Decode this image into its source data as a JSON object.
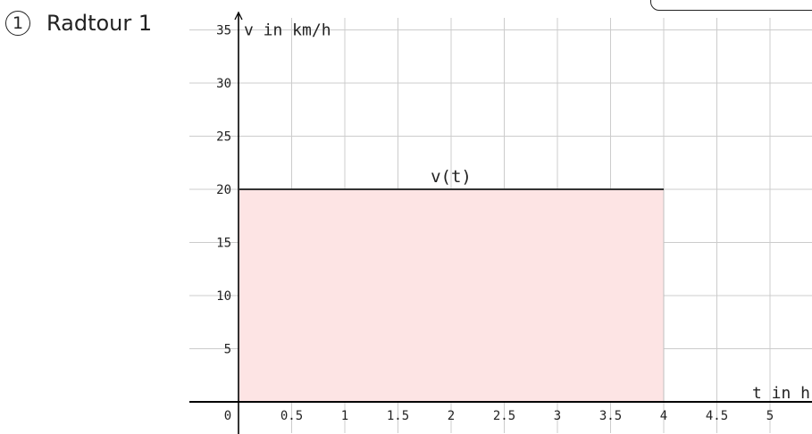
{
  "heading": {
    "number": "1",
    "label": "Radtour 1"
  },
  "chart_data": {
    "type": "area",
    "xlabel": "t in h",
    "ylabel": "v in km/h",
    "xlim": [
      0,
      5.3
    ],
    "ylim": [
      0,
      35
    ],
    "x_ticks": [
      0,
      0.5,
      1,
      1.5,
      2,
      2.5,
      3,
      3.5,
      4,
      4.5,
      5
    ],
    "x_tick_labels": [
      "0",
      "0.5",
      "1",
      "1.5",
      "2",
      "2.5",
      "3",
      "3.5",
      "4",
      "4.5",
      "5"
    ],
    "y_ticks": [
      5,
      10,
      15,
      20,
      25,
      30,
      35
    ],
    "y_tick_labels": [
      "5",
      "10",
      "15",
      "20",
      "25",
      "30",
      "35"
    ],
    "grid": true,
    "series": [
      {
        "name": "v(t)",
        "x": [
          0,
          4
        ],
        "values": [
          20,
          20
        ]
      }
    ],
    "fill": {
      "x_from": 0,
      "x_to": 4,
      "y_from": 0,
      "y_to": 20
    },
    "colors": {
      "fill": "#fde4e4",
      "line": "#333333",
      "grid": "#cccccc",
      "axis": "#000000",
      "text": "#222222"
    }
  }
}
